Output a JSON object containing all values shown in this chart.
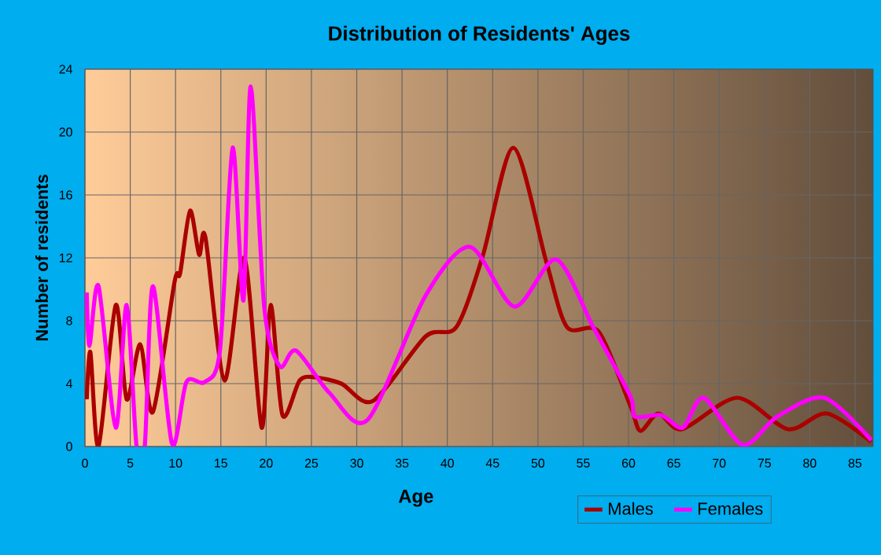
{
  "chart_data": {
    "type": "line",
    "title": "Distribution of Residents' Ages",
    "xlabel": "Age",
    "ylabel": "Number of residents",
    "xlim": [
      0,
      87
    ],
    "ylim": [
      0,
      24
    ],
    "xticks": [
      0,
      5,
      10,
      15,
      20,
      25,
      30,
      35,
      40,
      45,
      50,
      55,
      60,
      65,
      70,
      75,
      80,
      85
    ],
    "yticks": [
      0,
      4,
      8,
      12,
      16,
      20,
      24
    ],
    "grid": true,
    "legend": "bottom right",
    "line_style": "solid",
    "marker": "none",
    "series": [
      {
        "name": "Males",
        "color": "#aa0000",
        "x": [
          0.2,
          0.6,
          1.5,
          3.4,
          4.6,
          6.1,
          7.5,
          9.9,
          10.5,
          11.6,
          12.6,
          13.3,
          15.4,
          17.6,
          19.5,
          20.5,
          21.8,
          23.7,
          25.4,
          28.3,
          31.8,
          37.6,
          41,
          43.9,
          47.3,
          50.9,
          53.2,
          56.7,
          60.2,
          61.3,
          63.3,
          65.9,
          72,
          77.6,
          81.9,
          86.8
        ],
        "values": [
          3,
          6,
          0,
          9,
          3,
          6.5,
          2.2,
          10.5,
          11,
          15,
          12.2,
          13.3,
          4.2,
          12,
          1.2,
          9,
          2,
          4.2,
          4.4,
          4,
          2.9,
          7,
          7.6,
          12.1,
          19,
          11.8,
          7.6,
          7.3,
          2.6,
          1,
          2.1,
          1.1,
          3.1,
          1.1,
          2.1,
          0.3
        ]
      },
      {
        "name": "Females",
        "color": "#ff00ff",
        "x": [
          0.2,
          0.5,
          1.5,
          3.4,
          4.6,
          5.7,
          6.6,
          7.5,
          9.6,
          11.2,
          13.2,
          14.9,
          16.3,
          17.5,
          18.3,
          19.8,
          21.5,
          23.3,
          27,
          31.2,
          37.6,
          42.5,
          47.4,
          52,
          56.1,
          60.2,
          60.7,
          63.6,
          66,
          68.3,
          72.6,
          76.4,
          81.6,
          86.8
        ],
        "values": [
          9.8,
          6.4,
          10.2,
          1.2,
          9,
          0,
          0,
          10.2,
          0.2,
          4.1,
          4.1,
          6.1,
          19,
          9.3,
          22.9,
          8.8,
          5.1,
          6.1,
          3.4,
          1.7,
          9.6,
          12.7,
          8.9,
          11.9,
          7.6,
          3.2,
          1.9,
          2,
          1.2,
          3.1,
          0.1,
          1.9,
          3.1,
          0.4
        ]
      }
    ]
  }
}
